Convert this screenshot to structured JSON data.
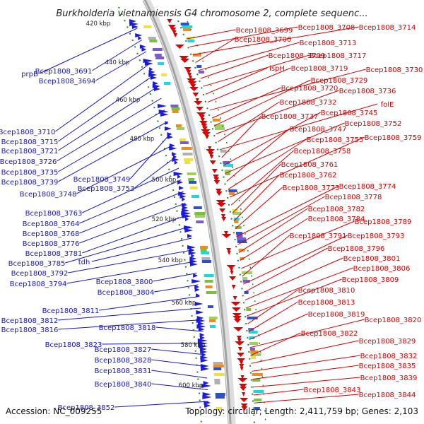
{
  "title": "Burkholderia vietnamiensis G4 chromosome 2, complete sequenc...",
  "accession_label": "Accession: NC_009255",
  "topology_label": "Topology: circular; Length: 2,411,759 bp; Genes: 2,103",
  "scale_ticks": [
    "420 kbp",
    "440 kbp",
    "460 kbp",
    "480 kbp",
    "500 kbp",
    "520 kbp",
    "540 kbp",
    "560 kbp",
    "580 kbp",
    "600 kbp"
  ],
  "left_labels": [
    "prpB",
    "Bcep1808_3691",
    "Bcep1808_3694",
    "Bcep1808_3710",
    "Bcep1808_3715",
    "Bcep1808_3721",
    "Bcep1808_3726",
    "Bcep1808_3735",
    "Bcep1808_3739",
    "Bcep1808_3749",
    "Bcep1808_3748",
    "Bcep1808_3753",
    "Bcep1808_3763",
    "Bcep1808_3764",
    "Bcep1808_3768",
    "Bcep1808_3776",
    "Bcep1808_3781",
    "Bcep1808_3785",
    "tdh",
    "Bcep1808_3792",
    "Bcep1808_3794",
    "Bcep1808_3800",
    "Bcep1808_3804",
    "Bcep1808_3811",
    "Bcep1808_3812",
    "Bcep1808_3816",
    "Bcep1808_3818",
    "Bcep1808_3823",
    "Bcep1808_3827",
    "Bcep1808_3828",
    "Bcep1808_3831",
    "Bcep1808_3840",
    "Bcep1808_3852"
  ],
  "right_labels": [
    "Bcep1808_3699",
    "Bcep1808_3708",
    "Bcep1808_3714",
    "Bcep1808_3700",
    "Bcep1808_3713",
    "Bcep1808_3709",
    "Bcep1808_3717",
    "ispH",
    "Bcep1808_3719",
    "Bcep1808_3730",
    "Bcep1808_3720",
    "Bcep1808_3729",
    "Bcep1808_3736",
    "Bcep1808_3732",
    "folE",
    "Bcep1808_3737",
    "Bcep1808_3745",
    "Bcep1808_3752",
    "Bcep1808_3747",
    "Bcep1808_3755",
    "Bcep1808_3759",
    "Bcep1808_3758",
    "Bcep1808_3761",
    "Bcep1808_3762",
    "Bcep1808_3773",
    "Bcep1808_3774",
    "Bcep1808_3778",
    "Bcep1808_3782",
    "Bcep1808_3784",
    "Bcep1808_3789",
    "Bcep1808_3791",
    "Bcep1808_3793",
    "Bcep1808_3796",
    "Bcep1808_3801",
    "Bcep1808_3806",
    "Bcep1808_3809",
    "Bcep1808_3810",
    "Bcep1808_3813",
    "Bcep1808_3819",
    "Bcep1808_3820",
    "Bcep1808_3822",
    "Bcep1808_3829",
    "Bcep1808_3832",
    "Bcep1808_3835",
    "Bcep1808_3839",
    "Bcep1808_3843",
    "Bcep1808_3844"
  ],
  "colors": {
    "forward_gene": "#1a1ae0",
    "reverse_gene": "#e00000",
    "label_left": "#1414c8",
    "label_right": "#d40000",
    "backbone": "#a8a8a8",
    "boundary_dots": "#1f8a1f",
    "feature_cyan": "#18d8e0",
    "feature_green": "#7ac142",
    "feature_purple": "#7a5cc8",
    "feature_orange": "#f08c1e"
  }
}
